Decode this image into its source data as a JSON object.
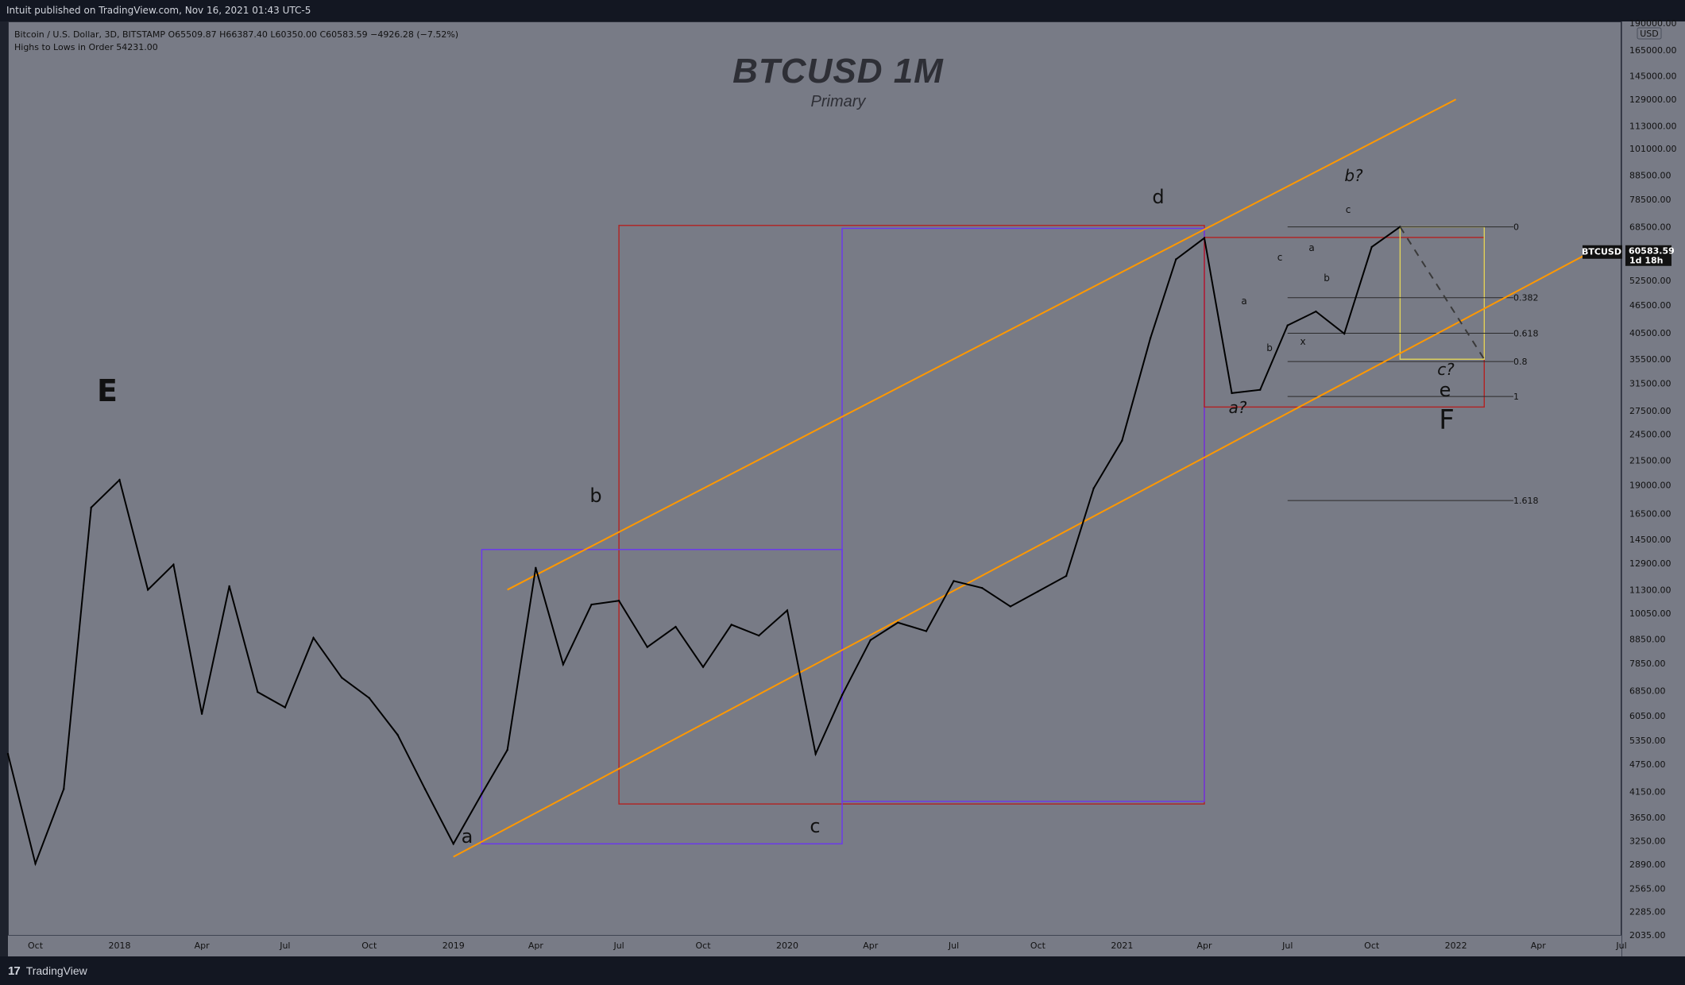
{
  "topbar": {
    "text": "Intuit published on TradingView.com, Nov 16, 2021 01:43 UTC-5"
  },
  "header": {
    "symbol_info": "Bitcoin / U.S. Dollar, 3D, BITSTAMP  O65509.87  H66387.40  L60350.00  C60583.59  −4926.28 (−7.52%)",
    "indicator_info": "Highs to Lows in Order  54231.00"
  },
  "title": {
    "main": "BTCUSD 1M",
    "sub": "Primary"
  },
  "footer": {
    "brand": "TradingView",
    "logo_mark": "17"
  },
  "price_axis": {
    "currency_badge": "USD",
    "current_symbol": "BTCUSD",
    "current_price": "60583.59",
    "current_time": "1d 18h",
    "ticks": [
      "165000.00",
      "145000.00",
      "129000.00",
      "113000.00",
      "101000.00",
      "88500.00",
      "78500.00",
      "68500.00",
      "52500.00",
      "46500.00",
      "40500.00",
      "35500.00",
      "31500.00",
      "27500.00",
      "24500.00",
      "21500.00",
      "19000.00",
      "16500.00",
      "14500.00",
      "12900.00",
      "11300.00",
      "10050.00",
      "8850.00",
      "7850.00",
      "6850.00",
      "6050.00",
      "5350.00",
      "4750.00",
      "4150.00",
      "3650.00",
      "3250.00",
      "2890.00",
      "2565.00",
      "2285.00",
      "2035.00",
      "190000.00"
    ]
  },
  "time_axis": {
    "ticks": [
      "Oct",
      "2018",
      "Apr",
      "Jul",
      "Oct",
      "2019",
      "Apr",
      "Jul",
      "Oct",
      "2020",
      "Apr",
      "Jul",
      "Oct",
      "2021",
      "Apr",
      "Jul",
      "Oct",
      "2022",
      "Apr",
      "Jul"
    ]
  },
  "annotations": {
    "wave_labels": [
      {
        "text": "E",
        "time": "2017-08"
      },
      {
        "text": "a",
        "time": "2019-02"
      },
      {
        "text": "b",
        "time": "2019-07"
      },
      {
        "text": "c",
        "time": "2020-03"
      },
      {
        "text": "d",
        "time": "2021-04"
      },
      {
        "text": "a?",
        "time": "2021-07"
      },
      {
        "text": "b?",
        "time": "2021-11"
      },
      {
        "text": "c?",
        "time": "2022-02"
      },
      {
        "text": "e",
        "time": "2022-02"
      },
      {
        "text": "F",
        "time": "2022-02"
      },
      {
        "text": "a",
        "time": "2021-07"
      },
      {
        "text": "b",
        "time": "2021-07"
      },
      {
        "text": "c",
        "time": "2021-08"
      },
      {
        "text": "x",
        "time": "2021-09"
      },
      {
        "text": "a",
        "time": "2021-10"
      },
      {
        "text": "b",
        "time": "2021-10"
      },
      {
        "text": "c",
        "time": "2021-11"
      }
    ],
    "fib_levels": [
      {
        "label": "0",
        "value": 68500
      },
      {
        "label": "0.382",
        "value": 48200
      },
      {
        "label": "0.618",
        "value": 40400
      },
      {
        "label": "0.8",
        "value": 35100
      },
      {
        "label": "1",
        "value": 29500
      },
      {
        "label": "1.618",
        "value": 17600
      }
    ]
  },
  "chart_data": {
    "type": "line",
    "title": "BTCUSD 1M",
    "subtitle": "Primary",
    "symbol": "BTCUSD",
    "log_scale": true,
    "x": [
      "2017-09",
      "2017-10",
      "2017-11",
      "2017-12",
      "2018-01",
      "2018-02",
      "2018-03",
      "2018-04",
      "2018-05",
      "2018-06",
      "2018-07",
      "2018-08",
      "2018-09",
      "2018-10",
      "2018-11",
      "2018-12",
      "2019-01",
      "2019-02",
      "2019-03",
      "2019-04",
      "2019-05",
      "2019-06",
      "2019-07",
      "2019-08",
      "2019-09",
      "2019-10",
      "2019-11",
      "2019-12",
      "2020-01",
      "2020-02",
      "2020-03",
      "2020-04",
      "2020-05",
      "2020-06",
      "2020-07",
      "2020-08",
      "2020-09",
      "2020-10",
      "2020-11",
      "2020-12",
      "2021-01",
      "2021-02",
      "2021-03",
      "2021-04",
      "2021-05",
      "2021-06",
      "2021-07",
      "2021-08",
      "2021-09",
      "2021-10",
      "2021-11"
    ],
    "y": [
      5000,
      2900,
      4200,
      17000,
      19500,
      11300,
      12800,
      6100,
      11500,
      6800,
      6300,
      8900,
      7300,
      6600,
      5500,
      4200,
      3200,
      4100,
      5100,
      12600,
      7800,
      10500,
      10700,
      8500,
      9400,
      7700,
      9500,
      9000,
      10200,
      5000,
      6700,
      8800,
      9600,
      9200,
      11800,
      11400,
      10400,
      11200,
      12100,
      18700,
      23700,
      39400,
      58300,
      64800,
      30000,
      30500,
      42000,
      45000,
      40300,
      62000,
      68500
    ],
    "ylim": [
      2035,
      190000
    ],
    "price_ticks": [
      165000,
      145000,
      129000,
      113000,
      101000,
      88500,
      78500,
      68500,
      52500,
      46500,
      40500,
      35500,
      31500,
      27500,
      24500,
      21500,
      19000,
      16500,
      14500,
      12900,
      11300,
      10050,
      8850,
      7850,
      6850,
      6050,
      5350,
      4750,
      4150,
      3650,
      3250,
      2890,
      2565,
      2285,
      2035
    ],
    "xlim": [
      "2017-09",
      "2022-07"
    ],
    "time_ticks": [
      "Oct",
      "2018",
      "Apr",
      "Jul",
      "Oct",
      "2019",
      "Apr",
      "Jul",
      "Oct",
      "2020",
      "Apr",
      "Jul",
      "Oct",
      "2021",
      "Apr",
      "Jul",
      "Oct",
      "2022",
      "Apr",
      "Jul"
    ],
    "dashed_projection": [
      {
        "time": "2021-11",
        "value": 68500
      },
      {
        "time": "2022-02",
        "value": 35500
      }
    ],
    "orange_lines": [
      {
        "start": {
          "time": "2019-03",
          "value": 11300
        },
        "end": {
          "time": "2022-01",
          "value": 129000
        }
      },
      {
        "start": {
          "time": "2019-01",
          "value": 3000
        },
        "end": {
          "time": "2022-06",
          "value": 61000
        }
      }
    ],
    "boxes": [
      {
        "color": "#b22222",
        "start": {
          "time": "2019-07",
          "value": 69000
        },
        "end": {
          "time": "2021-04",
          "value": 3900
        }
      },
      {
        "color": "#6a36f0",
        "start": {
          "time": "2020-03",
          "value": 68000
        },
        "end": {
          "time": "2021-04",
          "value": 3950
        }
      },
      {
        "color": "#6a36f0",
        "start": {
          "time": "2019-02",
          "value": 13800
        },
        "end": {
          "time": "2020-03",
          "value": 3200
        }
      },
      {
        "color": "#b22222",
        "start": {
          "time": "2021-04",
          "value": 65000
        },
        "end": {
          "time": "2022-02",
          "value": 28000
        }
      },
      {
        "color": "#e0d35a",
        "start": {
          "time": "2021-11",
          "value": 68500
        },
        "end": {
          "time": "2022-02",
          "value": 35500
        }
      }
    ]
  }
}
